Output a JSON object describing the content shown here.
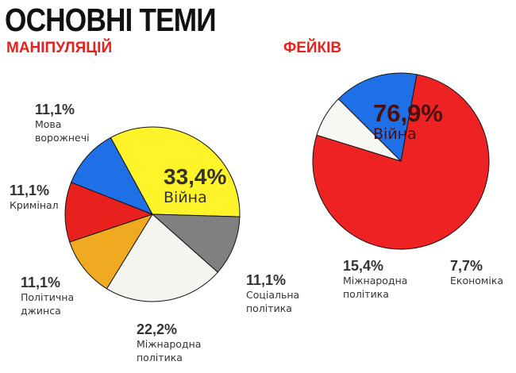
{
  "header": {
    "title": "ОСНОВНІ ТЕМИ",
    "manipulations_heading": "МАНІПУЛЯЦІЙ",
    "fakes_heading": "ФЕЙКІВ"
  },
  "chart_data": [
    {
      "type": "pie",
      "title": "МАНІПУЛЯЦІЙ",
      "slices": [
        {
          "label": "Війна",
          "value": 33.4,
          "value_label": "33,4%",
          "color": "#fff32a"
        },
        {
          "label": "Соціальна політика",
          "value": 11.1,
          "value_label": "11,1%",
          "color": "#808080"
        },
        {
          "label": "Міжнародна політика",
          "value": 22.2,
          "value_label": "22,2%",
          "color": "#f5f5f0"
        },
        {
          "label": "Політична джинса",
          "value": 11.1,
          "value_label": "11,1%",
          "color": "#f0aa22"
        },
        {
          "label": "Кримінал",
          "value": 11.1,
          "value_label": "11,1%",
          "color": "#e8201e"
        },
        {
          "label": "Мова ворожнечі",
          "value": 11.1,
          "value_label": "11,1%",
          "color": "#1f6fe6"
        }
      ],
      "labels": {
        "war": {
          "pct": "33,4%",
          "line1": "Війна"
        },
        "social": {
          "pct": "11,1%",
          "line1": "Соціальна",
          "line2": "політика"
        },
        "international": {
          "pct": "22,2%",
          "line1": "Міжнародна",
          "line2": "політика"
        },
        "paid": {
          "pct": "11,1%",
          "line1": "Політична",
          "line2": "джинса"
        },
        "criminal": {
          "pct": "11,1%",
          "line1": "Кримінал"
        },
        "hate": {
          "pct": "11,1%",
          "line1": "Мова",
          "line2": "ворожнечі"
        }
      }
    },
    {
      "type": "pie",
      "title": "ФЕЙКІВ",
      "slices": [
        {
          "label": "Війна",
          "value": 76.9,
          "value_label": "76,9%",
          "color": "#ee2222"
        },
        {
          "label": "Економіка",
          "value": 7.7,
          "value_label": "7,7%",
          "color": "#f7f7f4"
        },
        {
          "label": "Міжнародна політика",
          "value": 15.4,
          "value_label": "15,4%",
          "color": "#1f6fe6"
        }
      ],
      "labels": {
        "war": {
          "pct": "76,9%",
          "line1": "Війна"
        },
        "economy": {
          "pct": "7,7%",
          "line1": "Економіка"
        },
        "international": {
          "pct": "15,4%",
          "line1": "Міжнародна",
          "line2": "політика"
        }
      }
    }
  ]
}
